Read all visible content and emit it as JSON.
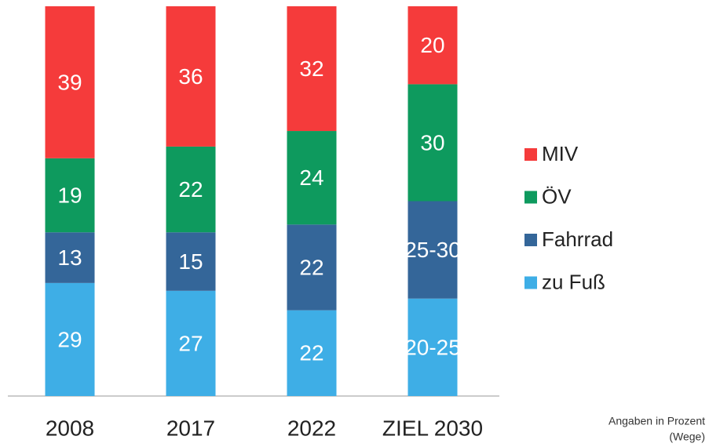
{
  "chart_data": {
    "type": "stacked_bar",
    "categories": [
      "2008",
      "2017",
      "2022",
      "ZIEL 2030"
    ],
    "series": [
      {
        "name": "zu Fuß",
        "color": "#3eaee6",
        "values": [
          29,
          27,
          22,
          25
        ],
        "value_labels": [
          "29",
          "27",
          "22",
          "20-25"
        ]
      },
      {
        "name": "Fahrrad",
        "color": "#346699",
        "values": [
          13,
          15,
          22,
          25
        ],
        "value_labels": [
          "13",
          "15",
          "22",
          "25-30"
        ]
      },
      {
        "name": "ÖV",
        "color": "#0e9a5e",
        "values": [
          19,
          22,
          24,
          30
        ]
      },
      {
        "name": "MIV",
        "color": "#f53b3b",
        "values": [
          39,
          36,
          32,
          20
        ]
      }
    ],
    "ylim": [
      0,
      100
    ],
    "note": [
      "Angaben in Prozent",
      "(Wege)"
    ]
  }
}
